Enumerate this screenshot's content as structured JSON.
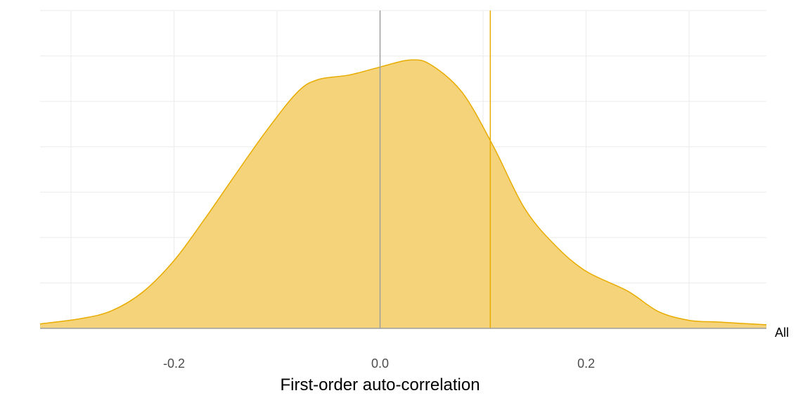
{
  "chart_data": {
    "type": "area",
    "subtype": "density",
    "title": "",
    "xlabel": "First-order auto-correlation",
    "ylabel": "",
    "xlim": [
      -0.33,
      0.375
    ],
    "ylim": [
      0,
      3.5
    ],
    "xticks": [
      -0.2,
      0.0,
      0.2
    ],
    "xtick_labels": [
      "-0.2",
      "0.0",
      "0.2"
    ],
    "grid": true,
    "legend": "none",
    "series": [
      {
        "name": "All",
        "fill_color": "#f5d37b",
        "line_color": "#e8ac00",
        "points": [
          [
            -0.33,
            0.05
          ],
          [
            -0.29,
            0.11
          ],
          [
            -0.26,
            0.2
          ],
          [
            -0.23,
            0.41
          ],
          [
            -0.2,
            0.76
          ],
          [
            -0.17,
            1.23
          ],
          [
            -0.14,
            1.73
          ],
          [
            -0.11,
            2.22
          ],
          [
            -0.08,
            2.65
          ],
          [
            -0.06,
            2.79
          ],
          [
            -0.03,
            2.84
          ],
          [
            0.0,
            2.93
          ],
          [
            0.03,
            3.01
          ],
          [
            0.05,
            2.95
          ],
          [
            0.08,
            2.64
          ],
          [
            0.11,
            2.04
          ],
          [
            0.14,
            1.35
          ],
          [
            0.17,
            0.93
          ],
          [
            0.2,
            0.64
          ],
          [
            0.24,
            0.42
          ],
          [
            0.27,
            0.19
          ],
          [
            0.3,
            0.09
          ],
          [
            0.33,
            0.07
          ],
          [
            0.375,
            0.04
          ]
        ]
      }
    ],
    "reference_lines": [
      {
        "x": 0.0,
        "color": "#9e9e9e"
      },
      {
        "x": 0.107,
        "color": "#e8ac00"
      }
    ]
  },
  "labels": {
    "group": "All"
  }
}
